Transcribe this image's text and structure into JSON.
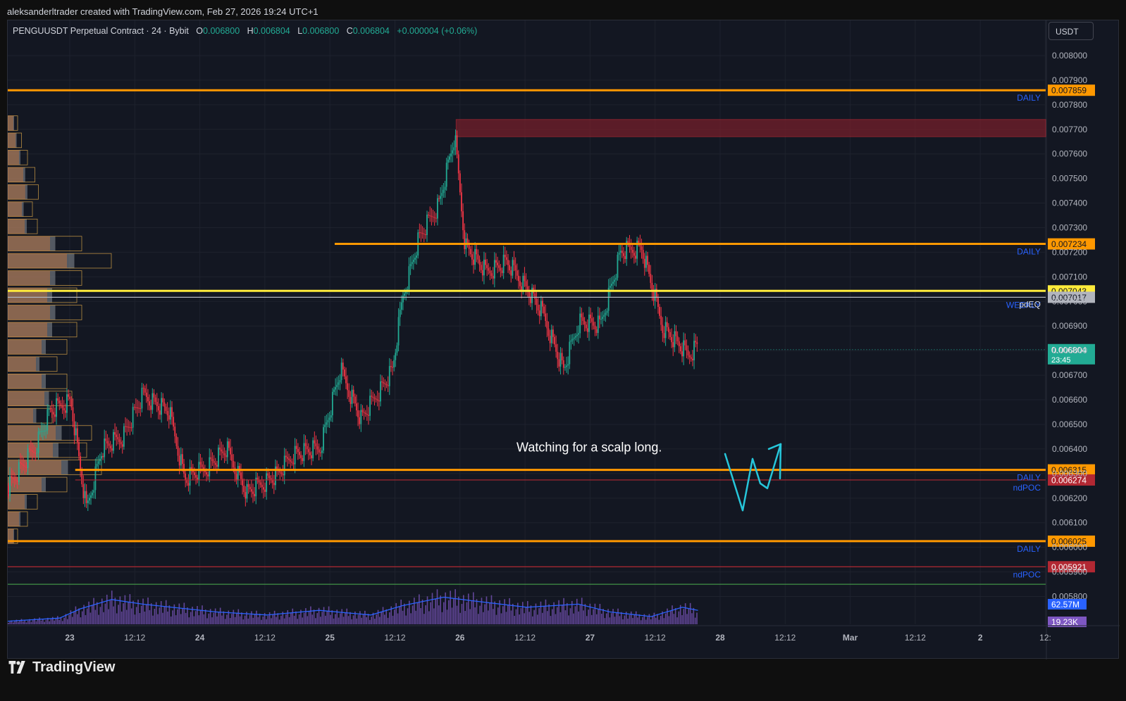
{
  "header": {
    "attribution": "aleksanderltrader created with TradingView.com, Feb 27, 2026 19:24 UTC+1"
  },
  "legend": {
    "symbol": "PENGUUSDT Perpetual Contract · 24 · Bybit",
    "open_label": "O",
    "open": "0.006800",
    "high_label": "H",
    "high": "0.006804",
    "low_label": "L",
    "low": "0.006800",
    "close_label": "C",
    "close": "0.006804",
    "change": "+0.000004 (+0.06%)"
  },
  "currency": "USDT",
  "annotation": "Watching for a scalp long.",
  "footer": {
    "brand": "TradingView"
  },
  "colors": {
    "background": "#131722",
    "up": "#22ab94",
    "down": "#f23645",
    "level_orange": "#ff9800",
    "level_yellow": "#ffeb3b",
    "level_red": "#b22833",
    "level_green": "#4caf50",
    "label_blue": "#2962ff",
    "volume_purple": "#7e57c2",
    "ma_blue": "#2962ff",
    "arrow_cyan": "#26c6da"
  },
  "chart_data": {
    "type": "candlestick",
    "y_range": [
      0.00575,
      0.00808
    ],
    "y_ticks": [
      "0.008000",
      "0.007900",
      "0.007800",
      "0.007700",
      "0.007600",
      "0.007500",
      "0.007400",
      "0.007300",
      "0.007200",
      "0.007100",
      "0.007000",
      "0.006900",
      "0.006800",
      "0.006700",
      "0.006600",
      "0.006500",
      "0.006400",
      "0.006300",
      "0.006200",
      "0.006100",
      "0.006000",
      "0.005900",
      "0.005800"
    ],
    "x_ticks": [
      "23",
      "12:12",
      "24",
      "12:12",
      "25",
      "12:12",
      "26",
      "12:12",
      "27",
      "12:12",
      "28",
      "12:12",
      "Mar",
      "12:12",
      "2",
      "12:"
    ],
    "levels": [
      {
        "price": 0.007859,
        "label": "0.007859",
        "tag": "DAILY",
        "color": "#ff9800",
        "start": 0.0
      },
      {
        "price": 0.007234,
        "label": "0.007234",
        "tag": "DAILY",
        "color": "#ff9800",
        "start": 0.315
      },
      {
        "price": 0.007043,
        "label": "0.007043",
        "tag": "",
        "color": "#ffeb3b",
        "start": 0.0
      },
      {
        "price": 0.007017,
        "label": "0.007017",
        "tag": "WEEKLY pdEQ",
        "color": "#b2b5be",
        "start": 0.0
      },
      {
        "price": 0.006315,
        "label": "0.006315",
        "tag": "DAILY",
        "color": "#ff9800",
        "start": 0.065
      },
      {
        "price": 0.006274,
        "label": "0.006274",
        "tag": "ndPOC",
        "color": "#b22833",
        "start": 0.065
      },
      {
        "price": 0.006025,
        "label": "0.006025",
        "tag": "DAILY",
        "color": "#ff9800",
        "start": 0.0
      },
      {
        "price": 0.005921,
        "label": "0.005921",
        "tag": "ndPOC",
        "color": "#b22833",
        "start": 0.0
      }
    ],
    "tags": [
      "DAILY",
      "DAILY",
      "WEEKLY",
      "pdEQ",
      "DAILY",
      "ndPOC",
      "DAILY",
      "ndPOC"
    ],
    "last_price": {
      "price": 0.006804,
      "label": "0.006804",
      "countdown": "23:45"
    },
    "volume_labels": [
      "62.57M",
      "19.23K"
    ],
    "supply_zone": {
      "top": 0.00774,
      "bottom": 0.00767
    },
    "price_path": [
      [
        0.0,
        0.00625
      ],
      [
        0.025,
        0.0064
      ],
      [
        0.04,
        0.00655
      ],
      [
        0.06,
        0.0066
      ],
      [
        0.075,
        0.00615
      ],
      [
        0.09,
        0.0064
      ],
      [
        0.11,
        0.00645
      ],
      [
        0.13,
        0.00662
      ],
      [
        0.155,
        0.00655
      ],
      [
        0.17,
        0.00628
      ],
      [
        0.19,
        0.00632
      ],
      [
        0.21,
        0.0064
      ],
      [
        0.23,
        0.00622
      ],
      [
        0.26,
        0.0063
      ],
      [
        0.275,
        0.00638
      ],
      [
        0.3,
        0.0064
      ],
      [
        0.32,
        0.00672
      ],
      [
        0.34,
        0.00652
      ],
      [
        0.37,
        0.00672
      ],
      [
        0.38,
        0.00702
      ],
      [
        0.395,
        0.00725
      ],
      [
        0.415,
        0.0074
      ],
      [
        0.43,
        0.00767
      ],
      [
        0.44,
        0.00723
      ],
      [
        0.46,
        0.00712
      ],
      [
        0.48,
        0.00716
      ],
      [
        0.5,
        0.00705
      ],
      [
        0.515,
        0.00695
      ],
      [
        0.535,
        0.00672
      ],
      [
        0.55,
        0.00692
      ],
      [
        0.57,
        0.0069
      ],
      [
        0.59,
        0.0072
      ],
      [
        0.61,
        0.00722
      ],
      [
        0.63,
        0.0069
      ],
      [
        0.655,
        0.00678
      ],
      [
        0.665,
        0.00683
      ]
    ],
    "volume_profile": [
      [
        0.00772,
        20
      ],
      [
        0.00765,
        28
      ],
      [
        0.00758,
        40
      ],
      [
        0.00751,
        55
      ],
      [
        0.00744,
        62
      ],
      [
        0.00737,
        50
      ],
      [
        0.0073,
        60
      ],
      [
        0.00723,
        150
      ],
      [
        0.00716,
        210
      ],
      [
        0.00709,
        150
      ],
      [
        0.00702,
        140
      ],
      [
        0.00695,
        150
      ],
      [
        0.00688,
        140
      ],
      [
        0.00681,
        120
      ],
      [
        0.00674,
        100
      ],
      [
        0.00667,
        120
      ],
      [
        0.0066,
        130
      ],
      [
        0.00653,
        90
      ],
      [
        0.00646,
        170
      ],
      [
        0.00639,
        160
      ],
      [
        0.00632,
        190
      ],
      [
        0.00625,
        120
      ],
      [
        0.00618,
        60
      ],
      [
        0.00611,
        40
      ],
      [
        0.00604,
        20
      ]
    ],
    "volume_path": [
      [
        0.0,
        4
      ],
      [
        0.05,
        8
      ],
      [
        0.07,
        20
      ],
      [
        0.1,
        32
      ],
      [
        0.13,
        26
      ],
      [
        0.2,
        16
      ],
      [
        0.25,
        12
      ],
      [
        0.3,
        18
      ],
      [
        0.35,
        12
      ],
      [
        0.38,
        24
      ],
      [
        0.42,
        35
      ],
      [
        0.45,
        30
      ],
      [
        0.5,
        22
      ],
      [
        0.55,
        26
      ],
      [
        0.58,
        16
      ],
      [
        0.62,
        10
      ],
      [
        0.65,
        22
      ],
      [
        0.665,
        18
      ]
    ]
  }
}
